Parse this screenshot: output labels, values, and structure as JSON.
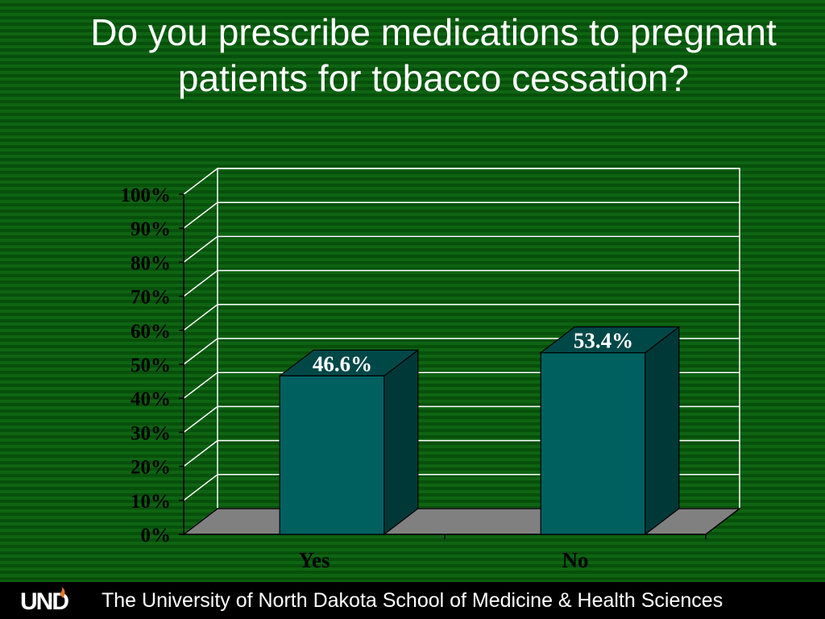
{
  "slide": {
    "title": "Do you prescribe medications to pregnant patients for tobacco cessation?"
  },
  "chart_data": {
    "type": "bar",
    "categories": [
      "Yes",
      "No"
    ],
    "values": [
      46.6,
      53.4
    ],
    "value_labels": [
      "46.6%",
      "53.4%"
    ],
    "ylim": [
      0,
      100
    ],
    "yticks": [
      "0%",
      "10%",
      "20%",
      "30%",
      "40%",
      "50%",
      "60%",
      "70%",
      "80%",
      "90%",
      "100%"
    ],
    "grid": true,
    "three_d": true
  },
  "colors": {
    "background": "#0a5a0e",
    "bar_front": "#006060",
    "bar_side": "#003838",
    "bar_top": "#004848",
    "floor": "#808080",
    "gridline": "#ffffff",
    "text": "#ffffff",
    "axis_label_text": "#000000"
  },
  "footer": {
    "logo_text": "UND",
    "institution": "The University of North Dakota School of Medicine & Health Sciences"
  }
}
